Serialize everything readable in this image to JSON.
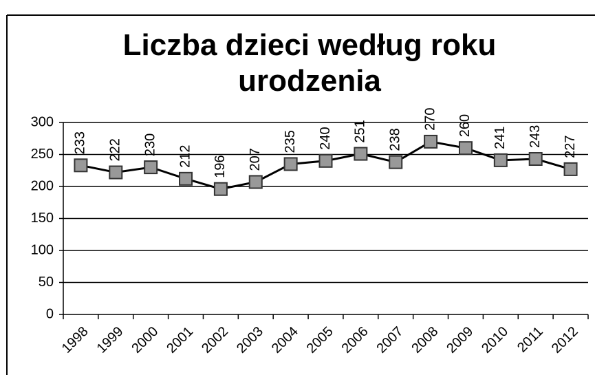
{
  "chart_data": {
    "type": "line",
    "title": "Liczba dzieci według roku urodzenia",
    "categories": [
      "1998",
      "1999",
      "2000",
      "2001",
      "2002",
      "2003",
      "2004",
      "2005",
      "2006",
      "2007",
      "2008",
      "2009",
      "2010",
      "2011",
      "2012"
    ],
    "series": [
      {
        "name": "Liczba dzieci",
        "color": "#000000",
        "values": [
          233,
          222,
          230,
          212,
          196,
          207,
          235,
          240,
          251,
          238,
          270,
          260,
          241,
          243,
          227
        ]
      }
    ],
    "ylim": [
      0,
      300
    ],
    "yticks": [
      0,
      50,
      100,
      150,
      200,
      250,
      300
    ],
    "grid": true
  }
}
